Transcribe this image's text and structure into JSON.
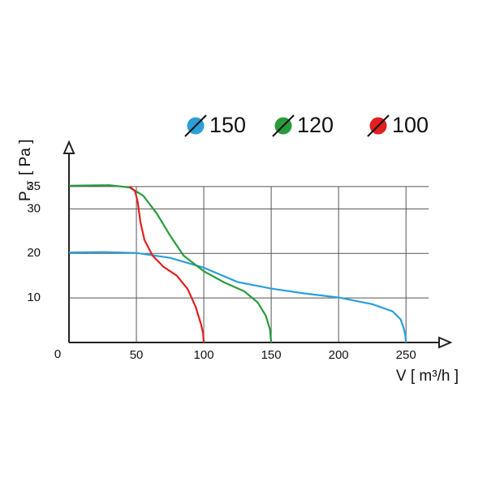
{
  "chart_data": {
    "type": "line",
    "y_label_symbol": "P",
    "y_label_subscript": "ST",
    "y_label_unit": "[ Pa ]",
    "x_label": "V [ m³/h ]",
    "xlim": [
      0,
      283
    ],
    "ylim": [
      0,
      45
    ],
    "xticks": [
      0,
      50,
      100,
      150,
      200,
      250
    ],
    "yticks": [
      10,
      20,
      30,
      35
    ],
    "grid": true,
    "series": [
      {
        "name": "150",
        "color": "#2b9fd9",
        "x": [
          0,
          25,
          50,
          75,
          100,
          125,
          150,
          175,
          200,
          225,
          240,
          246,
          248.5,
          249.5,
          250
        ],
        "values": [
          20.2,
          20.3,
          20.1,
          19,
          16.8,
          13.6,
          12.1,
          11,
          10.1,
          8.6,
          7,
          5.2,
          3,
          1.5,
          0
        ]
      },
      {
        "name": "120",
        "color": "#2a9a3d",
        "x": [
          0,
          30,
          45,
          55,
          65,
          75,
          85,
          100,
          115,
          130,
          140,
          146,
          149,
          150
        ],
        "values": [
          35.2,
          35.3,
          34.8,
          33,
          29,
          24,
          19.5,
          16,
          13.5,
          11.5,
          9,
          6,
          3,
          0
        ]
      },
      {
        "name": "100",
        "color": "#e11f1f",
        "x": [
          45,
          49,
          51,
          53,
          56,
          62,
          70,
          80,
          88,
          94,
          98,
          99.5,
          100
        ],
        "values": [
          35,
          34,
          31.5,
          27,
          23,
          19.5,
          17,
          15,
          12,
          8,
          4,
          2,
          0
        ]
      }
    ]
  }
}
